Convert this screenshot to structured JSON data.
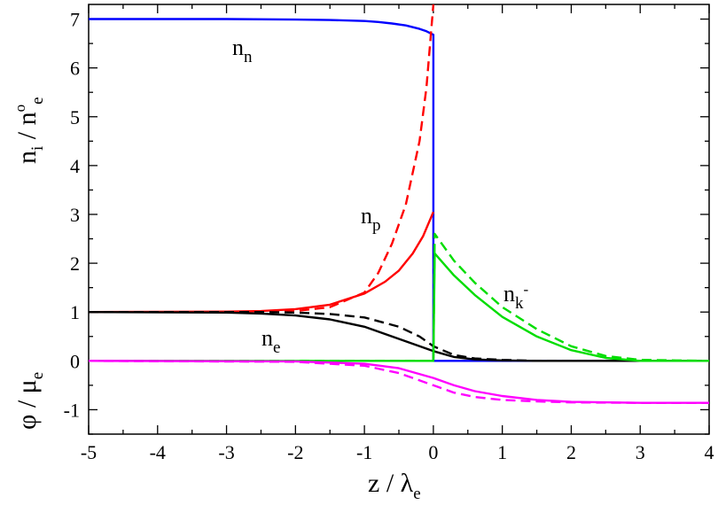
{
  "chart_data": {
    "type": "line",
    "xlabel": {
      "main": "z / λ",
      "sub": "e"
    },
    "ylabel_top": {
      "main": "n",
      "sub": "i",
      "mid": " / n",
      "sup": "o",
      "sub2": "e"
    },
    "ylabel_bottom": {
      "main": "φ / μ",
      "sub": "e"
    },
    "xlim": [
      -5,
      4
    ],
    "ylim": [
      -1.5,
      7.3
    ],
    "xticks": [
      "-5",
      "-4",
      "-3",
      "-2",
      "-1",
      "0",
      "1",
      "2",
      "3",
      "4"
    ],
    "yticks": [
      "-1",
      "0",
      "1",
      "2",
      "3",
      "4",
      "5",
      "6",
      "7"
    ],
    "labels": {
      "nn": {
        "main": "n",
        "sub": "n"
      },
      "np": {
        "main": "n",
        "sub": "p"
      },
      "ne": {
        "main": "n",
        "sub": "e"
      },
      "nk": {
        "main": "n",
        "sub": "k",
        "sup": "-"
      }
    },
    "series": [
      {
        "id": "nn",
        "color": "#0000ff",
        "dash": false,
        "x": [
          -5,
          -3,
          -2,
          -1.5,
          -1,
          -0.8,
          -0.6,
          -0.4,
          -0.2,
          -0.1,
          0,
          0,
          0.02,
          4
        ],
        "y": [
          7.0,
          7.0,
          6.99,
          6.98,
          6.96,
          6.94,
          6.91,
          6.87,
          6.8,
          6.75,
          6.68,
          0,
          0,
          0
        ]
      },
      {
        "id": "np_solid",
        "color": "#ff0000",
        "dash": false,
        "x": [
          -5,
          -3,
          -2.5,
          -2,
          -1.5,
          -1,
          -0.7,
          -0.5,
          -0.3,
          -0.15,
          0
        ],
        "y": [
          1.0,
          1.01,
          1.02,
          1.06,
          1.15,
          1.38,
          1.62,
          1.85,
          2.2,
          2.55,
          3.05
        ]
      },
      {
        "id": "np_dash",
        "color": "#ff0000",
        "dash": true,
        "x": [
          -5,
          -3,
          -2,
          -1.5,
          -1,
          -0.8,
          -0.6,
          -0.4,
          -0.2,
          -0.1,
          0
        ],
        "y": [
          1.0,
          1.0,
          1.02,
          1.1,
          1.4,
          1.8,
          2.4,
          3.2,
          4.5,
          5.6,
          7.3
        ]
      },
      {
        "id": "ne_solid",
        "color": "#000000",
        "dash": false,
        "x": [
          -5,
          -3,
          -2.5,
          -2,
          -1.5,
          -1,
          -0.5,
          -0.2,
          0,
          0.3,
          0.6,
          1,
          1.5,
          4
        ],
        "y": [
          1.0,
          0.99,
          0.97,
          0.93,
          0.85,
          0.7,
          0.45,
          0.3,
          0.2,
          0.08,
          0.03,
          0.01,
          0,
          0
        ]
      },
      {
        "id": "ne_dash",
        "color": "#000000",
        "dash": true,
        "x": [
          -5,
          -2.5,
          -2,
          -1.5,
          -1,
          -0.5,
          -0.2,
          0,
          0.3,
          0.6,
          1,
          1.5,
          4
        ],
        "y": [
          1.0,
          1.0,
          0.99,
          0.96,
          0.89,
          0.7,
          0.5,
          0.3,
          0.12,
          0.05,
          0.02,
          0,
          0
        ]
      },
      {
        "id": "nk_solid",
        "color": "#00dd00",
        "dash": false,
        "x": [
          -5,
          -0.02,
          0,
          0.02,
          0.3,
          0.6,
          1,
          1.5,
          2,
          2.5,
          3,
          4
        ],
        "y": [
          0,
          0,
          0,
          2.2,
          1.75,
          1.35,
          0.9,
          0.5,
          0.22,
          0.06,
          0,
          0
        ]
      },
      {
        "id": "nk_dash",
        "color": "#00dd00",
        "dash": true,
        "x": [
          -5,
          0,
          0.02,
          0.3,
          0.6,
          1,
          1.5,
          2,
          2.5,
          3,
          4
        ],
        "y": [
          0,
          0,
          2.6,
          2.05,
          1.6,
          1.1,
          0.65,
          0.3,
          0.1,
          0.02,
          0
        ]
      },
      {
        "id": "phi_solid",
        "color": "#ff00ff",
        "dash": false,
        "x": [
          -5,
          -2,
          -1,
          -0.5,
          0,
          0.3,
          0.6,
          1,
          1.5,
          2,
          3,
          4
        ],
        "y": [
          0,
          -0.01,
          -0.06,
          -0.15,
          -0.35,
          -0.5,
          -0.62,
          -0.72,
          -0.8,
          -0.84,
          -0.86,
          -0.86
        ]
      },
      {
        "id": "phi_dash",
        "color": "#ff00ff",
        "dash": true,
        "x": [
          -5,
          -2,
          -1,
          -0.5,
          0,
          0.3,
          0.6,
          1,
          1.5,
          2,
          3,
          4
        ],
        "y": [
          0,
          -0.02,
          -0.1,
          -0.25,
          -0.5,
          -0.65,
          -0.74,
          -0.8,
          -0.83,
          -0.85,
          -0.86,
          -0.86
        ]
      }
    ]
  }
}
